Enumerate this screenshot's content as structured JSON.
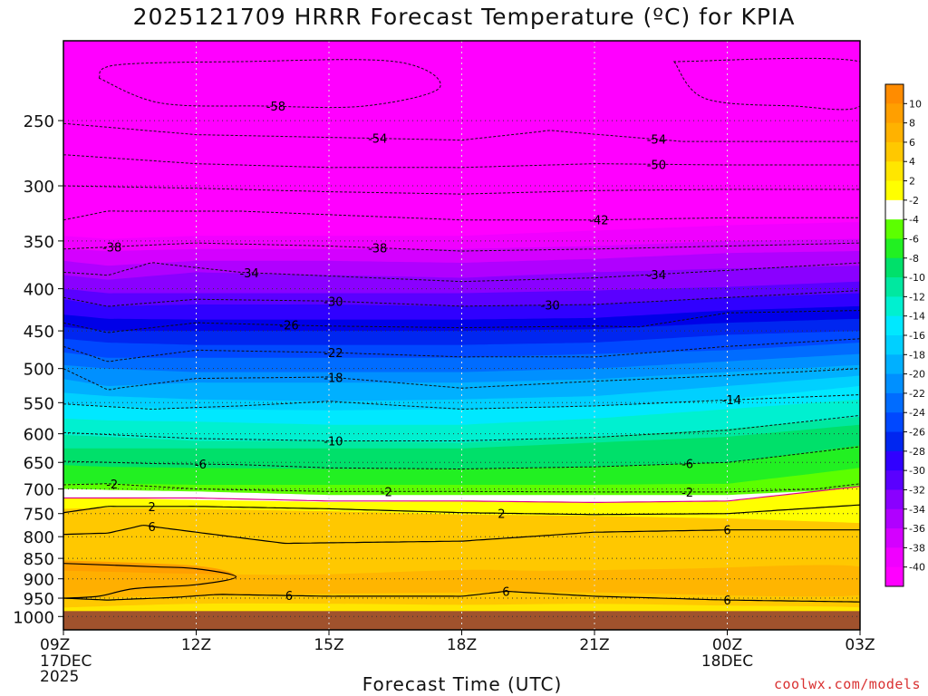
{
  "title": "2025121709 HRRR Forecast Temperature (ºC) for KPIA",
  "credit": "coolwx.com/models",
  "chart_data": {
    "type": "heatmap",
    "title": "2025121709 HRRR Forecast Temperature (ºC) for KPIA",
    "xlabel": "Forecast Time (UTC)",
    "ylabel": "",
    "x_range_hours": [
      0,
      18
    ],
    "y_range_hpa": [
      1038,
      200
    ],
    "y_scale": "log",
    "x_ticks": [
      {
        "hour": 0,
        "label": "09Z",
        "sub": [
          "17DEC",
          "2025"
        ]
      },
      {
        "hour": 3,
        "label": "12Z",
        "sub": []
      },
      {
        "hour": 6,
        "label": "15Z",
        "sub": []
      },
      {
        "hour": 9,
        "label": "18Z",
        "sub": []
      },
      {
        "hour": 12,
        "label": "21Z",
        "sub": []
      },
      {
        "hour": 15,
        "label": "00Z",
        "sub": [
          "18DEC"
        ]
      },
      {
        "hour": 18,
        "label": "03Z",
        "sub": []
      }
    ],
    "y_ticks": [
      250,
      300,
      350,
      400,
      450,
      500,
      550,
      600,
      650,
      700,
      750,
      800,
      850,
      900,
      950,
      1000
    ],
    "grid": true,
    "surface_pressure_hpa": 985,
    "colorbar": {
      "labels": [
        "10",
        "8",
        "6",
        "4",
        "2",
        "-2",
        "-4",
        "-6",
        "-8",
        "-10",
        "-12",
        "-14",
        "-16",
        "-18",
        "-20",
        "-22",
        "-24",
        "-26",
        "-28",
        "-30",
        "-32",
        "-34",
        "-36",
        "-38",
        "-40"
      ],
      "colors": [
        "#ff8c00",
        "#ff9f00",
        "#ffb200",
        "#ffc800",
        "#ffe600",
        "#ffff00",
        "#ffffff",
        "#5cff00",
        "#22f022",
        "#00e06a",
        "#00e8a0",
        "#00f0d0",
        "#00e8ff",
        "#00d0ff",
        "#00b0ff",
        "#0090ff",
        "#006cff",
        "#0048ff",
        "#0026f0",
        "#3000ff",
        "#5a00ff",
        "#8a00ff",
        "#b000ff",
        "#d400ff",
        "#f000ff",
        "#ff00ff"
      ]
    },
    "temperature_band_pressures_hpa": {
      "hours": [
        0,
        1,
        3,
        6,
        9,
        12,
        15,
        18
      ],
      "levels": [
        {
          "t": 2,
          "p": [
            740,
            738,
            740,
            745,
            752,
            755,
            760,
            770
          ]
        },
        {
          "t": 0,
          "p": [
            718,
            718,
            722,
            726,
            725,
            727,
            725,
            695
          ]
        },
        {
          "t": -2,
          "p": [
            700,
            702,
            705,
            712,
            712,
            712,
            712,
            700
          ]
        },
        {
          "t": -4,
          "p": [
            690,
            690,
            692,
            692,
            692,
            692,
            690,
            660
          ]
        },
        {
          "t": -6,
          "p": [
            655,
            658,
            660,
            662,
            662,
            658,
            650,
            620
          ]
        },
        {
          "t": -8,
          "p": [
            625,
            625,
            625,
            625,
            625,
            615,
            605,
            585
          ]
        },
        {
          "t": -10,
          "p": [
            602,
            605,
            612,
            612,
            615,
            605,
            592,
            572
          ]
        },
        {
          "t": -12,
          "p": [
            575,
            578,
            580,
            585,
            585,
            575,
            560,
            545
          ]
        },
        {
          "t": -14,
          "p": [
            552,
            555,
            560,
            562,
            560,
            555,
            545,
            525
          ]
        },
        {
          "t": -16,
          "p": [
            535,
            540,
            545,
            548,
            545,
            540,
            525,
            510
          ]
        },
        {
          "t": -18,
          "p": [
            515,
            525,
            520,
            520,
            520,
            515,
            505,
            495
          ]
        },
        {
          "t": -20,
          "p": [
            495,
            500,
            505,
            505,
            505,
            500,
            490,
            480
          ]
        },
        {
          "t": -22,
          "p": [
            478,
            485,
            485,
            485,
            485,
            480,
            475,
            465
          ]
        },
        {
          "t": -24,
          "p": [
            460,
            465,
            468,
            468,
            468,
            465,
            455,
            450
          ]
        },
        {
          "t": -26,
          "p": [
            445,
            450,
            450,
            450,
            450,
            448,
            440,
            435
          ]
        },
        {
          "t": -28,
          "p": [
            430,
            435,
            436,
            436,
            436,
            434,
            425,
            420
          ]
        },
        {
          "t": -30,
          "p": [
            412,
            420,
            418,
            418,
            420,
            418,
            410,
            405
          ]
        },
        {
          "t": -32,
          "p": [
            400,
            405,
            405,
            405,
            405,
            402,
            398,
            392
          ]
        },
        {
          "t": -34,
          "p": [
            385,
            390,
            382,
            385,
            388,
            382,
            378,
            375
          ]
        },
        {
          "t": -36,
          "p": [
            370,
            375,
            370,
            370,
            372,
            368,
            362,
            360
          ]
        },
        {
          "t": -38,
          "p": [
            358,
            360,
            358,
            358,
            358,
            355,
            350,
            348
          ]
        },
        {
          "t": -40,
          "p": [
            345,
            348,
            345,
            345,
            345,
            340,
            335,
            332
          ]
        }
      ]
    },
    "dashed_contours": [
      {
        "t": -58,
        "closed": true,
        "hours": [
          0.8,
          2.2,
          4.5,
          6.8,
          8.5,
          7.5,
          4.0,
          1.2,
          0.8
        ],
        "p": [
          222,
          238,
          240,
          240,
          228,
          212,
          212,
          214,
          222
        ],
        "label": {
          "text": "-58",
          "hour": 4.8
        }
      },
      {
        "t": -58,
        "closed": true,
        "hours": [
          13.8,
          14.5,
          16.5,
          18.0,
          18.0,
          13.8
        ],
        "p": [
          212,
          235,
          240,
          240,
          212,
          212
        ],
        "label": null
      },
      {
        "t": -54,
        "closed": false,
        "hours": [
          0,
          3,
          6,
          9,
          11,
          14,
          18
        ],
        "p": [
          252,
          260,
          262,
          264,
          257,
          265,
          265
        ],
        "label": {
          "text": "-54",
          "hour": 7.1
        },
        "label2": {
          "text": "-54",
          "hour": 13.4
        }
      },
      {
        "t": -50,
        "closed": false,
        "hours": [
          0,
          3,
          6,
          9,
          12,
          15,
          18
        ],
        "p": [
          275,
          282,
          285,
          285,
          282,
          283,
          283
        ],
        "label": {
          "text": "-50",
          "hour": 13.4
        }
      },
      {
        "t": -46,
        "closed": false,
        "hours": [
          0,
          3,
          6,
          9,
          12,
          15,
          18
        ],
        "p": [
          300,
          302,
          305,
          307,
          304,
          303,
          303
        ],
        "label": null
      },
      {
        "t": -42,
        "closed": false,
        "hours": [
          0,
          1,
          4,
          9,
          12,
          15,
          18
        ],
        "p": [
          330,
          322,
          322,
          330,
          330,
          328,
          328
        ],
        "label": {
          "text": "-42",
          "hour": 12.1
        }
      },
      {
        "t": -38,
        "closed": false,
        "hours": [
          0,
          1,
          3,
          6,
          9,
          12,
          15,
          18
        ],
        "p": [
          358,
          356,
          352,
          355,
          360,
          358,
          355,
          352
        ],
        "label": {
          "text": "-38",
          "hour": 1.1
        },
        "label2": {
          "text": "-38",
          "hour": 7.1
        }
      },
      {
        "t": -34,
        "closed": false,
        "hours": [
          0,
          1,
          2,
          4,
          9,
          12,
          15,
          18
        ],
        "p": [
          382,
          385,
          372,
          382,
          392,
          388,
          380,
          372
        ],
        "label": {
          "text": "-34",
          "hour": 4.2
        },
        "label2": {
          "text": "-34",
          "hour": 13.4
        }
      },
      {
        "t": -30,
        "closed": false,
        "hours": [
          0,
          1,
          3,
          6,
          9,
          12,
          15,
          18
        ],
        "p": [
          410,
          420,
          412,
          414,
          420,
          418,
          410,
          402
        ],
        "label": {
          "text": "-30",
          "hour": 6.1
        },
        "label2": {
          "text": "-30",
          "hour": 11.0
        }
      },
      {
        "t": -26,
        "closed": false,
        "hours": [
          0,
          1,
          3,
          6,
          9,
          12,
          13,
          15,
          18
        ],
        "p": [
          440,
          452,
          440,
          444,
          446,
          444,
          445,
          428,
          425
        ],
        "label": {
          "text": "-26",
          "hour": 5.1
        }
      },
      {
        "t": -22,
        "closed": false,
        "hours": [
          0,
          1,
          3,
          6,
          9,
          12,
          15,
          18
        ],
        "p": [
          470,
          490,
          475,
          478,
          484,
          484,
          470,
          460
        ],
        "label": {
          "text": "-22",
          "hour": 6.1
        }
      },
      {
        "t": -18,
        "closed": false,
        "hours": [
          0,
          1,
          3,
          6,
          9,
          12,
          15,
          18
        ],
        "p": [
          500,
          530,
          514,
          512,
          528,
          518,
          510,
          500
        ],
        "label": {
          "text": "-18",
          "hour": 6.1
        }
      },
      {
        "t": -14,
        "closed": false,
        "hours": [
          0,
          2,
          4,
          6,
          9,
          12,
          15,
          18
        ],
        "p": [
          552,
          560,
          555,
          548,
          560,
          555,
          546,
          538
        ],
        "label": {
          "text": "-14",
          "hour": 15.1
        }
      },
      {
        "t": -10,
        "closed": false,
        "hours": [
          0,
          3,
          6,
          9,
          12,
          15,
          18
        ],
        "p": [
          598,
          608,
          612,
          612,
          606,
          594,
          570
        ],
        "label": {
          "text": "-10",
          "hour": 6.1
        }
      },
      {
        "t": -6,
        "closed": false,
        "hours": [
          0,
          2,
          4,
          6,
          9,
          12,
          15,
          18
        ],
        "p": [
          648,
          652,
          654,
          660,
          662,
          658,
          650,
          622
        ],
        "label": {
          "text": "-6",
          "hour": 3.1
        },
        "label2": {
          "text": "-6",
          "hour": 14.1
        }
      },
      {
        "t": -2,
        "closed": false,
        "hours": [
          0,
          1,
          3,
          6,
          9,
          12,
          15,
          17,
          18
        ],
        "p": [
          692,
          690,
          700,
          705,
          705,
          706,
          706,
          700,
          690
        ],
        "label": {
          "text": "-2",
          "hour": 1.1
        },
        "label2": {
          "text": "-2",
          "hour": 7.3
        },
        "label3": {
          "text": "-2",
          "hour": 14.1
        }
      }
    ],
    "zero_line": {
      "t": 0,
      "hours": [
        0,
        3,
        6,
        9,
        12,
        15,
        18
      ],
      "p": [
        718,
        718,
        724,
        724,
        727,
        724,
        695
      ]
    },
    "solid_contours": [
      {
        "t": 2,
        "hours": [
          0,
          1,
          3,
          6,
          9,
          12,
          15,
          18
        ],
        "p": [
          748,
          735,
          735,
          740,
          748,
          752,
          750,
          732
        ],
        "label": {
          "text": "2",
          "hour": 2.0
        },
        "label2": {
          "text": "2",
          "hour": 9.9
        }
      },
      {
        "t": 6,
        "hours": [
          0,
          1,
          1.8,
          3,
          5,
          9,
          12,
          15,
          18
        ],
        "p": [
          795,
          792,
          775,
          790,
          815,
          810,
          790,
          785,
          785
        ],
        "label": {
          "text": "6",
          "hour": 2.0
        },
        "label2": {
          "text": "6",
          "hour": 15.0
        }
      },
      {
        "t": 10,
        "closed": true,
        "hours": [
          0,
          2,
          3.0,
          3.9,
          3.0,
          1.6,
          0.8,
          0
        ],
        "p": [
          862,
          870,
          875,
          895,
          915,
          925,
          945,
          950
        ],
        "label": null
      },
      {
        "t": 6,
        "hours": [
          0,
          1.0,
          2.5,
          3.5,
          6,
          9,
          10,
          12,
          15,
          18
        ],
        "p": [
          950,
          955,
          948,
          940,
          945,
          945,
          932,
          945,
          955,
          960
        ],
        "label": {
          "text": "6",
          "hour": 5.1
        },
        "label2": {
          "text": "6",
          "hour": 10.0
        },
        "label3": {
          "text": "6",
          "hour": 15.0
        }
      }
    ]
  }
}
